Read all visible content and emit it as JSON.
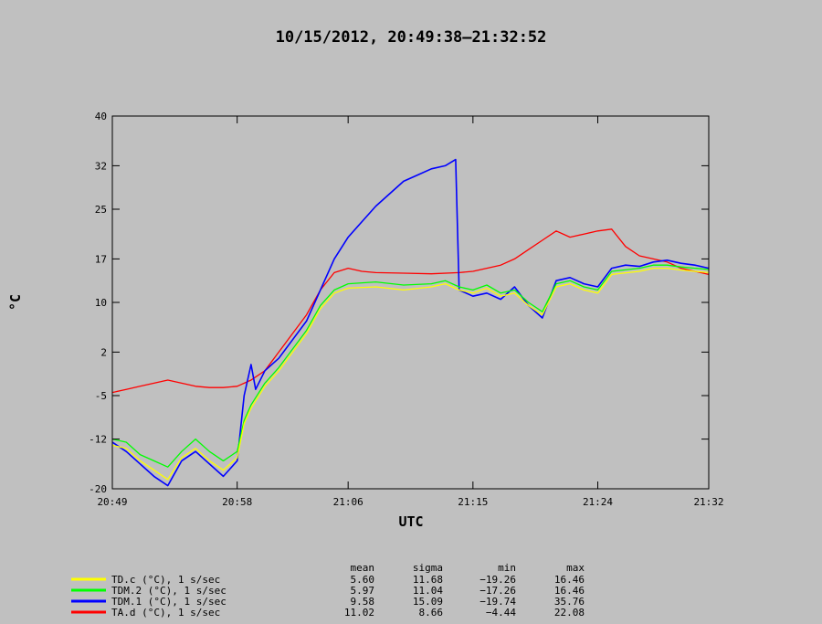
{
  "chart_data": {
    "type": "line",
    "title": "10/15/2012, 20:49:38–21:32:52",
    "xlabel": "UTC",
    "ylabel": "°C",
    "x_ticks": [
      "20:49",
      "20:58",
      "21:06",
      "21:15",
      "21:24",
      "21:32"
    ],
    "y_ticks": [
      -20,
      -12,
      -5,
      2,
      10,
      17,
      25,
      32,
      40
    ],
    "xlim": [
      "20:49",
      "21:32"
    ],
    "ylim": [
      -20,
      40
    ],
    "grid": false,
    "stats_columns": [
      "mean",
      "sigma",
      "min",
      "max"
    ],
    "series": [
      {
        "name": "TD.c (°C), 1 s/sec",
        "color": "#ffff00",
        "stats": [
          "5.60",
          "11.68",
          "−19.26",
          "16.46"
        ],
        "values": [
          [
            "20:49",
            -13.0
          ],
          [
            "20:50",
            -13.5
          ],
          [
            "20:51",
            -15.5
          ],
          [
            "20:52",
            -17.0
          ],
          [
            "20:53",
            -18.5
          ],
          [
            "20:54",
            -15.0
          ],
          [
            "20:55",
            -13.5
          ],
          [
            "20:56",
            -15.5
          ],
          [
            "20:57",
            -17.0
          ],
          [
            "20:58",
            -15.0
          ],
          [
            "20:58:30",
            -9.5
          ],
          [
            "20:59",
            -7.0
          ],
          [
            "21:00",
            -3.5
          ],
          [
            "21:01",
            -1.0
          ],
          [
            "21:02",
            2.0
          ],
          [
            "21:03",
            5.0
          ],
          [
            "21:04",
            9.0
          ],
          [
            "21:05",
            11.5
          ],
          [
            "21:06",
            12.3
          ],
          [
            "21:08",
            12.5
          ],
          [
            "21:10",
            12.0
          ],
          [
            "21:12",
            12.5
          ],
          [
            "21:13",
            13.0
          ],
          [
            "21:14",
            12.0
          ],
          [
            "21:15",
            11.5
          ],
          [
            "21:16",
            12.3
          ],
          [
            "21:17",
            11.0
          ],
          [
            "21:18",
            11.5
          ],
          [
            "21:19",
            9.5
          ],
          [
            "21:20",
            8.0
          ],
          [
            "21:21",
            12.5
          ],
          [
            "21:22",
            13.0
          ],
          [
            "21:23",
            12.0
          ],
          [
            "21:24",
            11.5
          ],
          [
            "21:25",
            14.5
          ],
          [
            "21:27",
            15.0
          ],
          [
            "21:28",
            15.5
          ],
          [
            "21:29",
            15.5
          ],
          [
            "21:30",
            15.2
          ],
          [
            "21:31",
            15.0
          ],
          [
            "21:32",
            14.8
          ]
        ]
      },
      {
        "name": "TDM.2 (°C), 1 s/sec",
        "color": "#00ff00",
        "stats": [
          "5.97",
          "11.04",
          "−17.26",
          "16.46"
        ],
        "values": [
          [
            "20:49",
            -12.0
          ],
          [
            "20:50",
            -12.5
          ],
          [
            "20:51",
            -14.5
          ],
          [
            "20:52",
            -15.5
          ],
          [
            "20:53",
            -16.5
          ],
          [
            "20:54",
            -14.0
          ],
          [
            "20:55",
            -12.0
          ],
          [
            "20:56",
            -14.0
          ],
          [
            "20:57",
            -15.5
          ],
          [
            "20:58",
            -14.0
          ],
          [
            "20:58:30",
            -9.0
          ],
          [
            "20:59",
            -6.5
          ],
          [
            "21:00",
            -3.0
          ],
          [
            "21:01",
            -0.5
          ],
          [
            "21:02",
            2.5
          ],
          [
            "21:03",
            5.5
          ],
          [
            "21:04",
            9.5
          ],
          [
            "21:05",
            12.0
          ],
          [
            "21:06",
            13.0
          ],
          [
            "21:08",
            13.3
          ],
          [
            "21:10",
            12.8
          ],
          [
            "21:12",
            13.0
          ],
          [
            "21:13",
            13.5
          ],
          [
            "21:14",
            12.5
          ],
          [
            "21:15",
            12.0
          ],
          [
            "21:16",
            12.8
          ],
          [
            "21:17",
            11.5
          ],
          [
            "21:18",
            12.0
          ],
          [
            "21:19",
            10.0
          ],
          [
            "21:20",
            8.5
          ],
          [
            "21:21",
            13.0
          ],
          [
            "21:22",
            13.5
          ],
          [
            "21:23",
            12.5
          ],
          [
            "21:24",
            12.0
          ],
          [
            "21:25",
            15.0
          ],
          [
            "21:27",
            15.5
          ],
          [
            "21:28",
            16.0
          ],
          [
            "21:29",
            16.0
          ],
          [
            "21:30",
            15.7
          ],
          [
            "21:31",
            15.5
          ],
          [
            "21:32",
            15.3
          ]
        ]
      },
      {
        "name": "TDM.1 (°C), 1 s/sec",
        "color": "#0000ff",
        "stats": [
          "9.58",
          "15.09",
          "−19.74",
          "35.76"
        ],
        "values": [
          [
            "20:49",
            -12.5
          ],
          [
            "20:50",
            -14.0
          ],
          [
            "20:51",
            -16.0
          ],
          [
            "20:52",
            -18.0
          ],
          [
            "20:53",
            -19.5
          ],
          [
            "20:54",
            -15.5
          ],
          [
            "20:55",
            -14.0
          ],
          [
            "20:56",
            -16.0
          ],
          [
            "20:57",
            -18.0
          ],
          [
            "20:58",
            -15.5
          ],
          [
            "20:58:30",
            -5.0
          ],
          [
            "20:59",
            0.0
          ],
          [
            "20:59:20",
            -4.0
          ],
          [
            "21:00",
            -1.0
          ],
          [
            "21:01",
            1.0
          ],
          [
            "21:02",
            4.0
          ],
          [
            "21:03",
            7.0
          ],
          [
            "21:04",
            12.0
          ],
          [
            "21:05",
            17.0
          ],
          [
            "21:06",
            20.5
          ],
          [
            "21:07",
            23.0
          ],
          [
            "21:08",
            25.5
          ],
          [
            "21:09",
            27.5
          ],
          [
            "21:10",
            29.5
          ],
          [
            "21:11",
            30.5
          ],
          [
            "21:12",
            31.5
          ],
          [
            "21:13",
            32.0
          ],
          [
            "21:13:45",
            33.0
          ],
          [
            "21:14",
            12.0
          ],
          [
            "21:15",
            11.0
          ],
          [
            "21:16",
            11.5
          ],
          [
            "21:17",
            10.5
          ],
          [
            "21:18",
            12.5
          ],
          [
            "21:19",
            9.5
          ],
          [
            "21:20",
            7.5
          ],
          [
            "21:21",
            13.5
          ],
          [
            "21:22",
            14.0
          ],
          [
            "21:23",
            13.0
          ],
          [
            "21:24",
            12.5
          ],
          [
            "21:25",
            15.5
          ],
          [
            "21:26",
            16.0
          ],
          [
            "21:27",
            15.8
          ],
          [
            "21:28",
            16.5
          ],
          [
            "21:29",
            16.8
          ],
          [
            "21:30",
            16.3
          ],
          [
            "21:31",
            16.0
          ],
          [
            "21:32",
            15.5
          ]
        ]
      },
      {
        "name": "TA.d (°C), 1 s/sec",
        "color": "#ff0000",
        "stats": [
          "11.02",
          "8.66",
          "−4.44",
          "22.08"
        ],
        "values": [
          [
            "20:49",
            -4.5
          ],
          [
            "20:50",
            -4.0
          ],
          [
            "20:51",
            -3.5
          ],
          [
            "20:52",
            -3.0
          ],
          [
            "20:53",
            -2.5
          ],
          [
            "20:54",
            -3.0
          ],
          [
            "20:55",
            -3.5
          ],
          [
            "20:56",
            -3.7
          ],
          [
            "20:57",
            -3.7
          ],
          [
            "20:58",
            -3.5
          ],
          [
            "20:59",
            -2.5
          ],
          [
            "21:00",
            -1.0
          ],
          [
            "21:01",
            2.0
          ],
          [
            "21:02",
            5.0
          ],
          [
            "21:03",
            8.0
          ],
          [
            "21:04",
            12.0
          ],
          [
            "21:05",
            14.8
          ],
          [
            "21:06",
            15.5
          ],
          [
            "21:07",
            15.0
          ],
          [
            "21:08",
            14.8
          ],
          [
            "21:10",
            14.7
          ],
          [
            "21:12",
            14.6
          ],
          [
            "21:14",
            14.8
          ],
          [
            "21:15",
            15.0
          ],
          [
            "21:16",
            15.5
          ],
          [
            "21:17",
            16.0
          ],
          [
            "21:18",
            17.0
          ],
          [
            "21:19",
            18.5
          ],
          [
            "21:20",
            20.0
          ],
          [
            "21:21",
            21.5
          ],
          [
            "21:22",
            20.5
          ],
          [
            "21:23",
            21.0
          ],
          [
            "21:24",
            21.5
          ],
          [
            "21:25",
            21.8
          ],
          [
            "21:26",
            19.0
          ],
          [
            "21:27",
            17.5
          ],
          [
            "21:28",
            17.0
          ],
          [
            "21:29",
            16.5
          ],
          [
            "21:30",
            15.5
          ],
          [
            "21:31",
            15.0
          ],
          [
            "21:32",
            14.5
          ]
        ]
      }
    ]
  }
}
